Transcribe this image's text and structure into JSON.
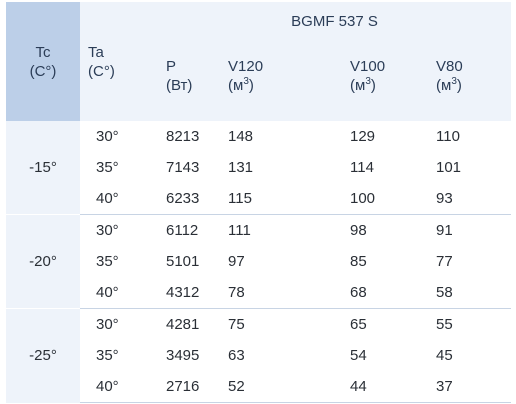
{
  "header": {
    "tc_line1": "Tc",
    "tc_line2": "(C°)",
    "ta_line1": "Ta",
    "ta_line2": "(C°)",
    "model": "BGMF 537 S",
    "p_line1": "P",
    "p_line2": "(Вт)",
    "v120_line1": "V120",
    "v100_line1": "V100",
    "v80_line1": "V80",
    "unit_base": "(м",
    "unit_sup": "3",
    "unit_close": ")"
  },
  "groups": [
    {
      "tc": "-15°",
      "rows": [
        {
          "ta": "30°",
          "p": "8213",
          "v120": "148",
          "v100": "129",
          "v80": "110"
        },
        {
          "ta": "35°",
          "p": "7143",
          "v120": "131",
          "v100": "114",
          "v80": "101"
        },
        {
          "ta": "40°",
          "p": "6233",
          "v120": "115",
          "v100": "100",
          "v80": "93"
        }
      ]
    },
    {
      "tc": "-20°",
      "rows": [
        {
          "ta": "30°",
          "p": "6112",
          "v120": "111",
          "v100": "98",
          "v80": "91"
        },
        {
          "ta": "35°",
          "p": "5101",
          "v120": "97",
          "v100": "85",
          "v80": "77"
        },
        {
          "ta": "40°",
          "p": "4312",
          "v120": "78",
          "v100": "68",
          "v80": "58"
        }
      ]
    },
    {
      "tc": "-25°",
      "rows": [
        {
          "ta": "30°",
          "p": "4281",
          "v120": "75",
          "v100": "65",
          "v80": "55"
        },
        {
          "ta": "35°",
          "p": "3495",
          "v120": "63",
          "v100": "54",
          "v80": "45"
        },
        {
          "ta": "40°",
          "p": "2716",
          "v120": "52",
          "v100": "44",
          "v80": "37"
        }
      ]
    }
  ]
}
